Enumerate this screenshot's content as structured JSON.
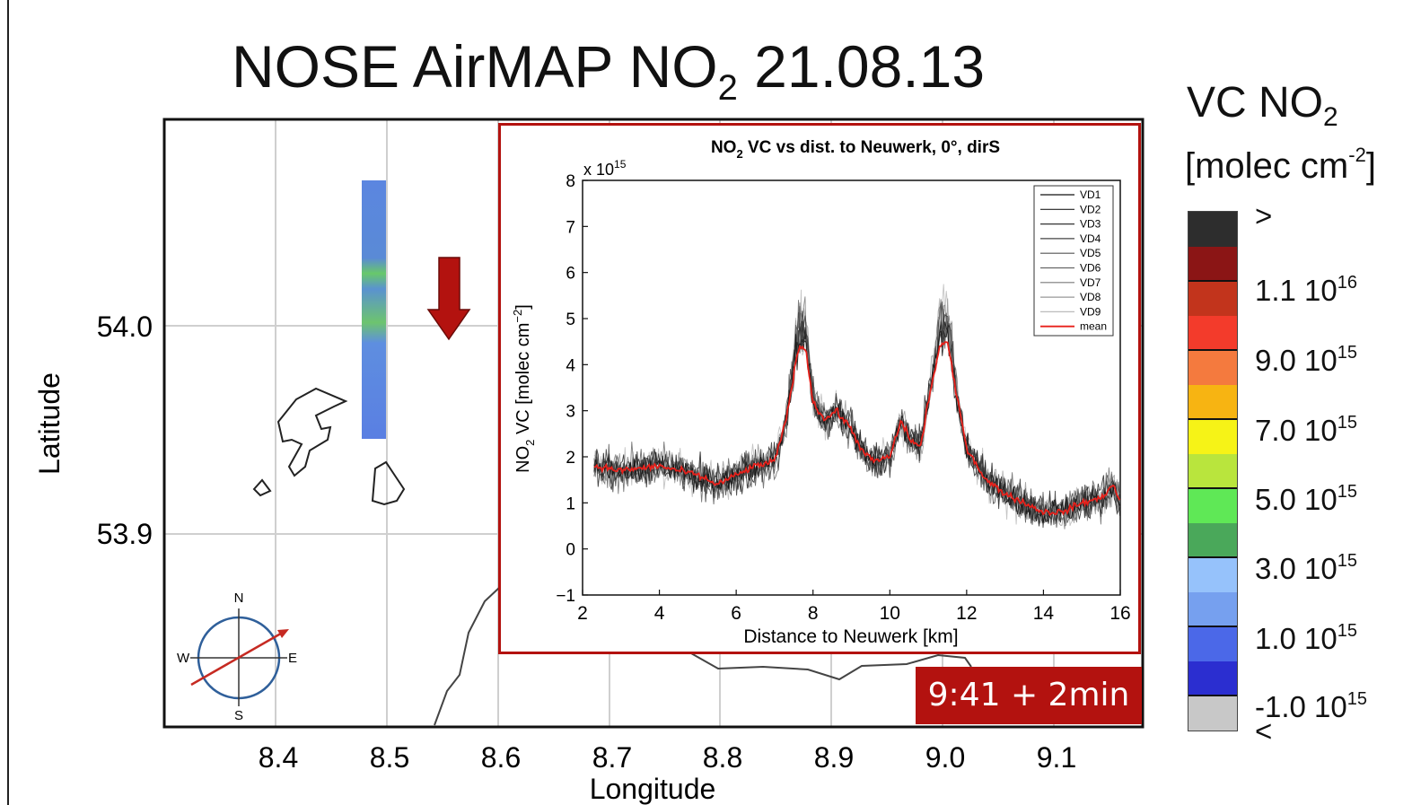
{
  "title": {
    "prefix": "NOSE AirMAP  NO",
    "sub": "2",
    "suffix": " 21.08.13"
  },
  "colorbar": {
    "title_prefix": "VC NO",
    "title_sub": "2",
    "unit_prefix": "[molec cm",
    "unit_sup": "-2",
    "unit_suffix": "]",
    "segments": [
      "#2d2d2d",
      "#8b1515",
      "#c2341c",
      "#f33b2b",
      "#f47a3e",
      "#f7b412",
      "#f6f317",
      "#b9e53d",
      "#5fe856",
      "#4aa85a",
      "#96c2fb",
      "#76a0ef",
      "#4b68e8",
      "#2b2ed0",
      "#c8c8c8"
    ],
    "labels": [
      {
        "mantissa": ">",
        "exp": ""
      },
      {
        "mantissa": "1.1 10",
        "exp": "16"
      },
      {
        "mantissa": "9.0 10",
        "exp": "15"
      },
      {
        "mantissa": "7.0 10",
        "exp": "15"
      },
      {
        "mantissa": "5.0 10",
        "exp": "15"
      },
      {
        "mantissa": "3.0 10",
        "exp": "15"
      },
      {
        "mantissa": "1.0 10",
        "exp": "15"
      },
      {
        "mantissa": "-1.0 10",
        "exp": "15"
      },
      {
        "mantissa": "<",
        "exp": ""
      }
    ]
  },
  "map": {
    "xlabel": "Longitude",
    "ylabel": "Latitude",
    "xticks": [
      "8.4",
      "8.5",
      "8.6",
      "8.7",
      "8.8",
      "8.9",
      "9.0",
      "9.1"
    ],
    "yticks": [
      "54.0",
      "53.9"
    ],
    "compass": {
      "n": "N",
      "s": "S",
      "e": "E",
      "w": "W"
    },
    "time_badge": "9:41  + 2min",
    "arrow_color": "#b3120f"
  },
  "chart_data": {
    "type": "line",
    "title_prefix": "NO",
    "title_sub": "2",
    "title_suffix": " VC vs dist. to Neuwerk, 0°, dirS",
    "xlabel": "Distance to Neuwerk [km]",
    "ylabel_prefix": "NO",
    "ylabel_sub": "2",
    "ylabel_mid": " VC [molec cm",
    "ylabel_sup": "−2",
    "ylabel_suffix": "]",
    "y_multiplier_prefix": "x 10",
    "y_multiplier_exp": "15",
    "xlim": [
      2,
      16
    ],
    "ylim": [
      -1,
      8
    ],
    "xticks": [
      "2",
      "4",
      "6",
      "8",
      "10",
      "12",
      "14",
      "16"
    ],
    "yticks": [
      "8",
      "7",
      "6",
      "5",
      "4",
      "3",
      "2",
      "1",
      "0",
      "−1"
    ],
    "legend_position": "top-right",
    "legend": [
      "VD1",
      "VD2",
      "VD3",
      "VD4",
      "VD5",
      "VD6",
      "VD7",
      "VD8",
      "VD9",
      "mean"
    ],
    "series_colors": [
      "#111111",
      "#222222",
      "#333333",
      "#444444",
      "#555555",
      "#666666",
      "#7a7a7a",
      "#999999",
      "#bbbbbb",
      "#e8201a"
    ],
    "mean": {
      "x": [
        2.3,
        3,
        4,
        5,
        5.5,
        6,
        6.5,
        7,
        7.3,
        7.6,
        7.8,
        8,
        8.3,
        8.6,
        9,
        9.3,
        9.6,
        10,
        10.3,
        10.5,
        10.8,
        11,
        11.3,
        11.5,
        11.7,
        12,
        12.5,
        13,
        13.5,
        14,
        14.5,
        15,
        15.5,
        15.8,
        16
      ],
      "y": [
        1.8,
        1.7,
        1.8,
        1.6,
        1.4,
        1.6,
        1.8,
        1.9,
        2.8,
        4.3,
        4.4,
        3.2,
        2.8,
        3.0,
        2.6,
        2.1,
        1.9,
        2.0,
        2.8,
        2.4,
        2.2,
        3.2,
        4.4,
        4.5,
        3.5,
        2.2,
        1.5,
        1.2,
        1.0,
        0.8,
        0.8,
        1.0,
        1.1,
        1.4,
        1.0
      ]
    }
  }
}
